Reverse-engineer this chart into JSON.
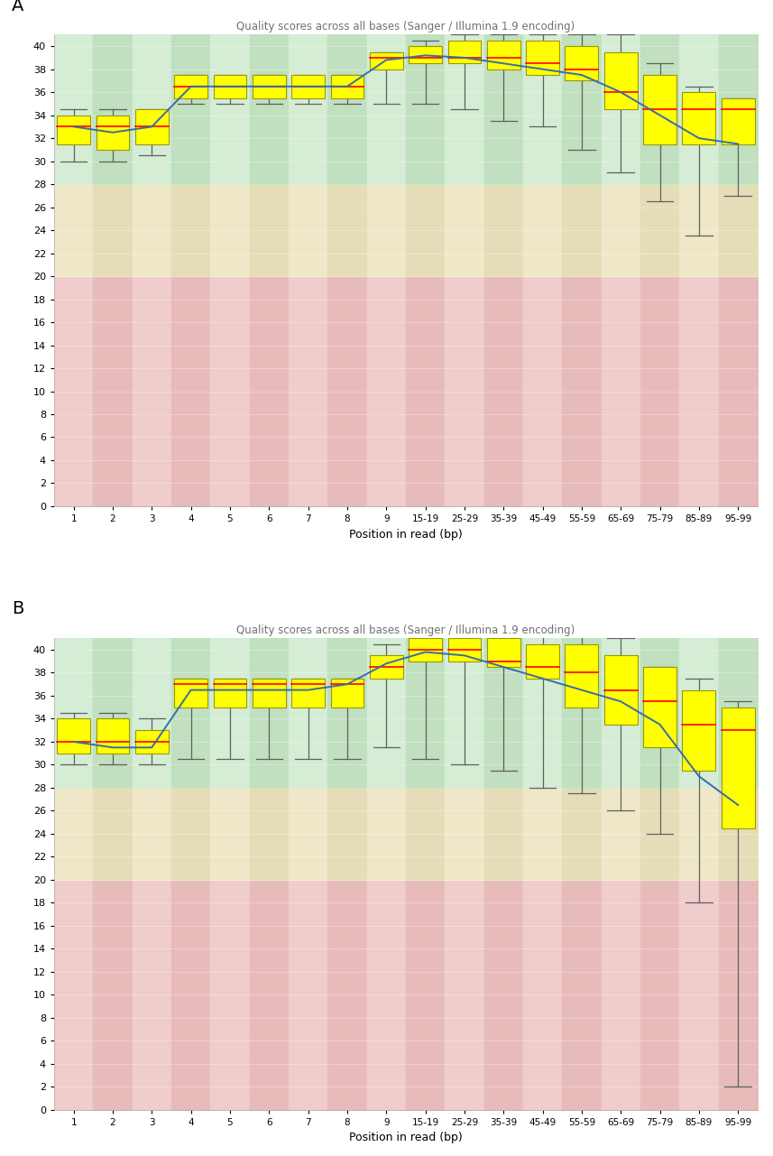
{
  "title": "Quality scores across all bases (Sanger / Illumina 1.9 encoding)",
  "xlabel": "Position in read (bp)",
  "panel_labels": [
    "A",
    "B"
  ],
  "xticklabels": [
    "1",
    "2",
    "3",
    "4",
    "5",
    "6",
    "7",
    "8",
    "9",
    "15-19",
    "25-29",
    "35-39",
    "45-49",
    "55-59",
    "65-69",
    "75-79",
    "85-89",
    "95-99"
  ],
  "ylim": [
    0,
    41
  ],
  "yticks": [
    0,
    2,
    4,
    6,
    8,
    10,
    12,
    14,
    16,
    18,
    20,
    22,
    24,
    26,
    28,
    30,
    32,
    34,
    36,
    38,
    40
  ],
  "mean_line_color": "#3a6da8",
  "box_fill_color": "#ffff00",
  "box_edge_color": "#999900",
  "median_color": "#ff0000",
  "whisker_color": "#606060",
  "green_colors": [
    "#d5ecd5",
    "#c0e0c0"
  ],
  "orange_colors": [
    "#efe8c8",
    "#e5ddb8"
  ],
  "red_colors": [
    "#f0cccc",
    "#e8bbbb"
  ],
  "panel_A": {
    "boxes": [
      {
        "q1": 31.5,
        "med": 33.0,
        "q3": 34.0,
        "whislo": 30.0,
        "whishi": 34.5
      },
      {
        "q1": 31.0,
        "med": 33.0,
        "q3": 34.0,
        "whislo": 30.0,
        "whishi": 34.5
      },
      {
        "q1": 31.5,
        "med": 33.0,
        "q3": 34.5,
        "whislo": 30.5,
        "whishi": 34.5
      },
      {
        "q1": 35.5,
        "med": 36.5,
        "q3": 37.5,
        "whislo": 35.0,
        "whishi": 37.5
      },
      {
        "q1": 35.5,
        "med": 36.5,
        "q3": 37.5,
        "whislo": 35.0,
        "whishi": 37.5
      },
      {
        "q1": 35.5,
        "med": 36.5,
        "q3": 37.5,
        "whislo": 35.0,
        "whishi": 37.5
      },
      {
        "q1": 35.5,
        "med": 36.5,
        "q3": 37.5,
        "whislo": 35.0,
        "whishi": 37.5
      },
      {
        "q1": 35.5,
        "med": 36.5,
        "q3": 37.5,
        "whislo": 35.0,
        "whishi": 37.5
      },
      {
        "q1": 38.0,
        "med": 39.0,
        "q3": 39.5,
        "whislo": 35.0,
        "whishi": 39.5
      },
      {
        "q1": 38.5,
        "med": 39.0,
        "q3": 40.0,
        "whislo": 35.0,
        "whishi": 40.5
      },
      {
        "q1": 38.5,
        "med": 39.0,
        "q3": 40.5,
        "whislo": 34.5,
        "whishi": 41.0
      },
      {
        "q1": 38.0,
        "med": 39.0,
        "q3": 40.5,
        "whislo": 33.5,
        "whishi": 41.0
      },
      {
        "q1": 37.5,
        "med": 38.5,
        "q3": 40.5,
        "whislo": 33.0,
        "whishi": 41.0
      },
      {
        "q1": 37.0,
        "med": 38.0,
        "q3": 40.0,
        "whislo": 31.0,
        "whishi": 41.0
      },
      {
        "q1": 34.5,
        "med": 36.0,
        "q3": 39.5,
        "whislo": 29.0,
        "whishi": 41.0
      },
      {
        "q1": 31.5,
        "med": 34.5,
        "q3": 37.5,
        "whislo": 26.5,
        "whishi": 38.5
      },
      {
        "q1": 31.5,
        "med": 34.5,
        "q3": 36.0,
        "whislo": 23.5,
        "whishi": 36.5
      },
      {
        "q1": 31.5,
        "med": 34.5,
        "q3": 35.5,
        "whislo": 27.0,
        "whishi": 35.5
      }
    ],
    "mean_line": [
      33.0,
      32.5,
      33.0,
      36.5,
      36.5,
      36.5,
      36.5,
      36.5,
      38.8,
      39.2,
      39.0,
      38.5,
      38.0,
      37.5,
      36.0,
      34.0,
      32.0,
      31.5
    ]
  },
  "panel_B": {
    "boxes": [
      {
        "q1": 31.0,
        "med": 32.0,
        "q3": 34.0,
        "whislo": 30.0,
        "whishi": 34.5
      },
      {
        "q1": 31.0,
        "med": 32.0,
        "q3": 34.0,
        "whislo": 30.0,
        "whishi": 34.5
      },
      {
        "q1": 31.0,
        "med": 32.0,
        "q3": 33.0,
        "whislo": 30.0,
        "whishi": 34.0
      },
      {
        "q1": 35.0,
        "med": 37.0,
        "q3": 37.5,
        "whislo": 30.5,
        "whishi": 37.5
      },
      {
        "q1": 35.0,
        "med": 37.0,
        "q3": 37.5,
        "whislo": 30.5,
        "whishi": 37.5
      },
      {
        "q1": 35.0,
        "med": 37.0,
        "q3": 37.5,
        "whislo": 30.5,
        "whishi": 37.5
      },
      {
        "q1": 35.0,
        "med": 37.0,
        "q3": 37.5,
        "whislo": 30.5,
        "whishi": 37.5
      },
      {
        "q1": 35.0,
        "med": 37.0,
        "q3": 37.5,
        "whislo": 30.5,
        "whishi": 37.5
      },
      {
        "q1": 37.5,
        "med": 38.5,
        "q3": 39.5,
        "whislo": 31.5,
        "whishi": 40.5
      },
      {
        "q1": 39.0,
        "med": 40.0,
        "q3": 41.0,
        "whislo": 30.5,
        "whishi": 41.5
      },
      {
        "q1": 39.0,
        "med": 40.0,
        "q3": 41.0,
        "whislo": 30.0,
        "whishi": 41.5
      },
      {
        "q1": 38.5,
        "med": 39.0,
        "q3": 41.0,
        "whislo": 29.5,
        "whishi": 41.5
      },
      {
        "q1": 37.5,
        "med": 38.5,
        "q3": 40.5,
        "whislo": 28.0,
        "whishi": 41.5
      },
      {
        "q1": 35.0,
        "med": 38.0,
        "q3": 40.5,
        "whislo": 27.5,
        "whishi": 41.5
      },
      {
        "q1": 33.5,
        "med": 36.5,
        "q3": 39.5,
        "whislo": 26.0,
        "whishi": 41.0
      },
      {
        "q1": 31.5,
        "med": 35.5,
        "q3": 38.5,
        "whislo": 24.0,
        "whishi": 38.5
      },
      {
        "q1": 29.5,
        "med": 33.5,
        "q3": 36.5,
        "whislo": 18.0,
        "whishi": 37.5
      },
      {
        "q1": 24.5,
        "med": 33.0,
        "q3": 35.0,
        "whislo": 2.0,
        "whishi": 35.5
      }
    ],
    "mean_line": [
      32.0,
      31.5,
      31.5,
      36.5,
      36.5,
      36.5,
      36.5,
      37.0,
      38.8,
      39.8,
      39.5,
      38.5,
      37.5,
      36.5,
      35.5,
      33.5,
      29.0,
      26.5
    ]
  }
}
